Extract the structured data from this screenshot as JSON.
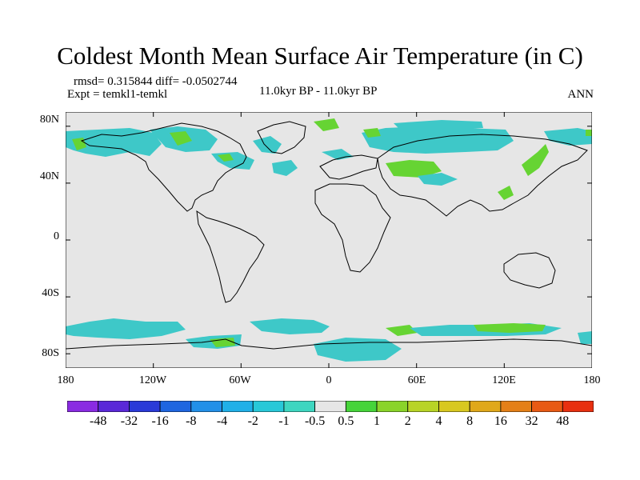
{
  "title": "Coldest Month Mean Surface Air Temperature (in C)",
  "stats_text": "rmsd= 0.315844 diff= -0.0502744",
  "experiment_text": "Expt = temkl1-temkl",
  "period_text": "11.0kyr BP - 11.0kyr BP",
  "season": "ANN",
  "colors": {
    "background_field": "#e6e6e6",
    "cool_1": "#3ec8c8",
    "cool_2": "#2fb9dd",
    "warm_1": "#66d433",
    "warm_2": "#a8d628",
    "coast": "#000000"
  },
  "map": {
    "projection": "cylindrical-equidistant",
    "lon_range": [
      -180,
      180
    ],
    "lat_range": [
      -90,
      90
    ],
    "lat_labels": [
      "80N",
      "40N",
      "0",
      "40S",
      "80S"
    ],
    "lat_values": [
      80,
      40,
      0,
      -40,
      -80
    ],
    "lon_labels": [
      "180",
      "120W",
      "60W",
      "0",
      "60E",
      "120E",
      "180"
    ],
    "lon_values": [
      -180,
      -120,
      -60,
      0,
      60,
      120,
      180
    ]
  },
  "colorbar": {
    "labels": [
      "-48",
      "-32",
      "-16",
      "-8",
      "-4",
      "-2",
      "-1",
      "-0.5",
      "0.5",
      "1",
      "2",
      "4",
      "8",
      "16",
      "32",
      "48"
    ],
    "colors": [
      "#8a2be2",
      "#5a28d8",
      "#2a3ad8",
      "#1f66e0",
      "#2290e8",
      "#20b0e8",
      "#28c8d8",
      "#3ed6c0",
      "#e6e6e6",
      "#46d43a",
      "#8ad42a",
      "#b8d426",
      "#d8c820",
      "#e0a81a",
      "#e48018",
      "#e85a14",
      "#e83010"
    ]
  }
}
